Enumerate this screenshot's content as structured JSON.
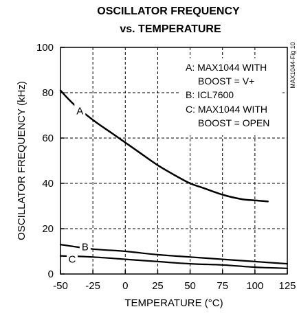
{
  "chart_data": {
    "type": "line",
    "title": "OSCILLATOR FREQUENCY",
    "subtitle": "vs. TEMPERATURE",
    "xlabel": "TEMPERATURE (°C)",
    "ylabel": "OSCILLATOR FREQUENCY (kHz)",
    "xlim": [
      -50,
      125
    ],
    "ylim": [
      0,
      100
    ],
    "xticks": [
      -50,
      -25,
      0,
      25,
      50,
      75,
      100,
      125
    ],
    "yticks": [
      0,
      20,
      40,
      60,
      80,
      100
    ],
    "grid": "dashed",
    "figure_id": "MAX1044-Fig 10",
    "legend": [
      "A: MAX1044 WITH",
      "BOOST = V+",
      "B: ICL7600",
      "C: MAX1044 WITH",
      "BOOST = OPEN"
    ],
    "series": [
      {
        "name": "A",
        "x": [
          -50,
          -40,
          -25,
          -10,
          0,
          10,
          25,
          40,
          50,
          60,
          75,
          90,
          100,
          110
        ],
        "y": [
          81,
          75,
          68,
          62,
          58,
          54,
          48,
          43,
          40,
          38,
          35,
          33,
          32.5,
          32
        ]
      },
      {
        "name": "B",
        "x": [
          -50,
          -25,
          0,
          25,
          50,
          75,
          100,
          125
        ],
        "y": [
          13,
          11,
          10,
          8.5,
          7.5,
          6.5,
          5.5,
          4.5
        ]
      },
      {
        "name": "C",
        "x": [
          -50,
          -25,
          0,
          25,
          50,
          75,
          100,
          125
        ],
        "y": [
          8,
          7.5,
          6.5,
          5.5,
          4.5,
          4,
          3,
          2.5
        ]
      }
    ]
  }
}
